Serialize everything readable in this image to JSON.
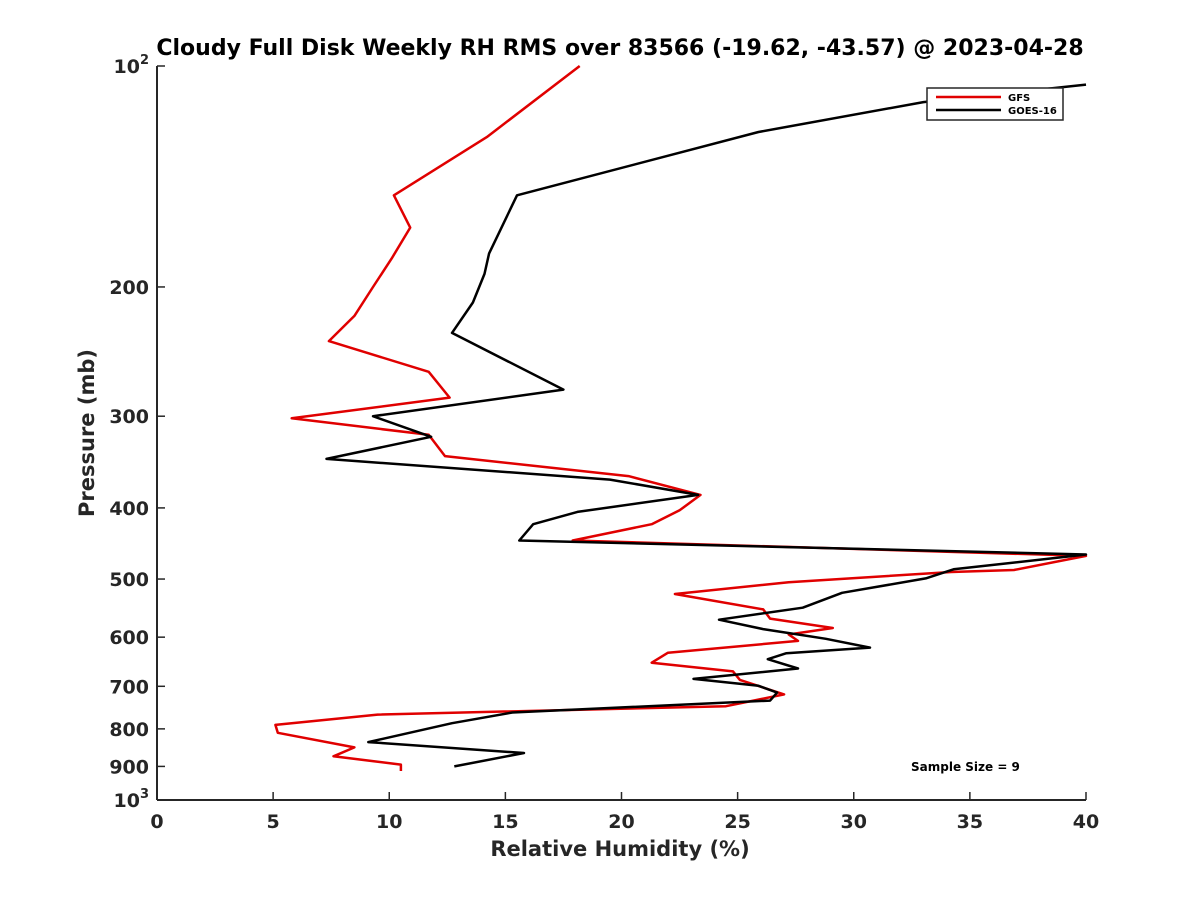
{
  "chart_data": {
    "type": "line",
    "title": "Cloudy Full Disk Weekly RH RMS over 83566 (-19.62, -43.57) @ 2023-04-28",
    "xlabel": "Relative Humidity (%)",
    "ylabel": "Pressure (mb)",
    "xlim": [
      0,
      40
    ],
    "ylim": [
      100,
      1000
    ],
    "y_scale": "log",
    "y_reversed": true,
    "x_ticks": [
      "0",
      "5",
      "10",
      "15",
      "20",
      "25",
      "30",
      "35",
      "40"
    ],
    "y_ticks": [
      {
        "value": 100,
        "base": "10",
        "exp": "2"
      },
      {
        "value": 200,
        "label": "200"
      },
      {
        "value": 300,
        "label": "300"
      },
      {
        "value": 400,
        "label": "400"
      },
      {
        "value": 500,
        "label": "500"
      },
      {
        "value": 600,
        "label": "600"
      },
      {
        "value": 700,
        "label": "700"
      },
      {
        "value": 800,
        "label": "800"
      },
      {
        "value": 900,
        "label": "900"
      },
      {
        "value": 1000,
        "base": "10",
        "exp": "3"
      }
    ],
    "grid": false,
    "legend_position": "top-right",
    "annotation": "Sample Size = 9",
    "series": [
      {
        "name": "GFS",
        "color": "#e00000",
        "points": [
          [
            18.2,
            100
          ],
          [
            14.2,
            125
          ],
          [
            10.2,
            150
          ],
          [
            10.9,
            166
          ],
          [
            10.1,
            183
          ],
          [
            9.3,
            200
          ],
          [
            8.5,
            219
          ],
          [
            7.4,
            237
          ],
          [
            11.7,
            261
          ],
          [
            12.6,
            283
          ],
          [
            5.8,
            302
          ],
          [
            11.7,
            318
          ],
          [
            12.4,
            340
          ],
          [
            20.3,
            362
          ],
          [
            23.4,
            384
          ],
          [
            22.5,
            403
          ],
          [
            21.3,
            421
          ],
          [
            17.9,
            443
          ],
          [
            40.0,
            465
          ],
          [
            36.9,
            486
          ],
          [
            34.2,
            489
          ],
          [
            27.2,
            505
          ],
          [
            22.3,
            524
          ],
          [
            26.1,
            550
          ],
          [
            26.4,
            566
          ],
          [
            29.1,
            583
          ],
          [
            27.2,
            595
          ],
          [
            27.6,
            607
          ],
          [
            22.0,
            630
          ],
          [
            21.3,
            650
          ],
          [
            24.8,
            668
          ],
          [
            25.1,
            686
          ],
          [
            27.0,
            718
          ],
          [
            24.5,
            745
          ],
          [
            9.5,
            765
          ],
          [
            5.1,
            790
          ],
          [
            5.2,
            810
          ],
          [
            8.5,
            848
          ],
          [
            7.6,
            872
          ],
          [
            10.5,
            895
          ],
          [
            10.5,
            913
          ]
        ]
      },
      {
        "name": "GOES-16",
        "color": "#000000",
        "points": [
          [
            40.0,
            106
          ],
          [
            33.0,
            112
          ],
          [
            25.9,
            123
          ],
          [
            15.5,
            150
          ],
          [
            14.3,
            180
          ],
          [
            14.1,
            192
          ],
          [
            13.6,
            210
          ],
          [
            12.7,
            231
          ],
          [
            17.5,
            276
          ],
          [
            9.3,
            300
          ],
          [
            11.8,
            320
          ],
          [
            7.3,
            343
          ],
          [
            19.5,
            366
          ],
          [
            23.3,
            384
          ],
          [
            18.1,
            405
          ],
          [
            16.2,
            421
          ],
          [
            15.6,
            443
          ],
          [
            40.0,
            463
          ],
          [
            34.3,
            485
          ],
          [
            33.1,
            499
          ],
          [
            29.5,
            522
          ],
          [
            27.8,
            547
          ],
          [
            24.2,
            568
          ],
          [
            26.1,
            585
          ],
          [
            28.8,
            603
          ],
          [
            30.7,
            620
          ],
          [
            27.1,
            631
          ],
          [
            26.3,
            643
          ],
          [
            27.6,
            662
          ],
          [
            23.1,
            684
          ],
          [
            25.9,
            699
          ],
          [
            26.7,
            714
          ],
          [
            26.4,
            732
          ],
          [
            15.3,
            760
          ],
          [
            12.7,
            786
          ],
          [
            9.1,
            834
          ],
          [
            15.8,
            863
          ],
          [
            12.8,
            900
          ]
        ]
      }
    ]
  }
}
